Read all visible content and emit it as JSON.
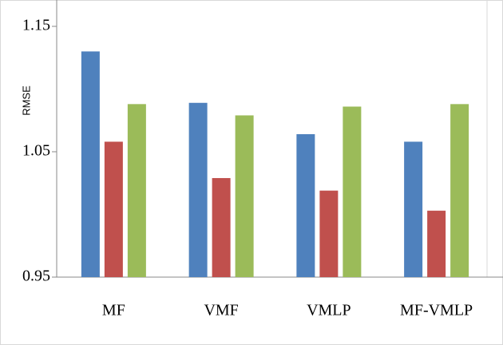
{
  "chart_data": {
    "type": "bar",
    "y_label": "RMSE",
    "categories": [
      "MF",
      "VMF",
      "VMLP",
      "MF-VMLP"
    ],
    "series": [
      {
        "color": "#4f81bd",
        "values": [
          1.13,
          1.089,
          1.064,
          1.058
        ]
      },
      {
        "color": "#c0504d",
        "values": [
          1.058,
          1.029,
          1.019,
          1.003
        ]
      },
      {
        "color": "#9bbb59",
        "values": [
          1.088,
          1.079,
          1.086,
          1.088
        ]
      }
    ],
    "ylim": [
      0.95,
      1.15
    ],
    "yticks": [
      0.95,
      1.05,
      1.15
    ],
    "grid": false
  }
}
